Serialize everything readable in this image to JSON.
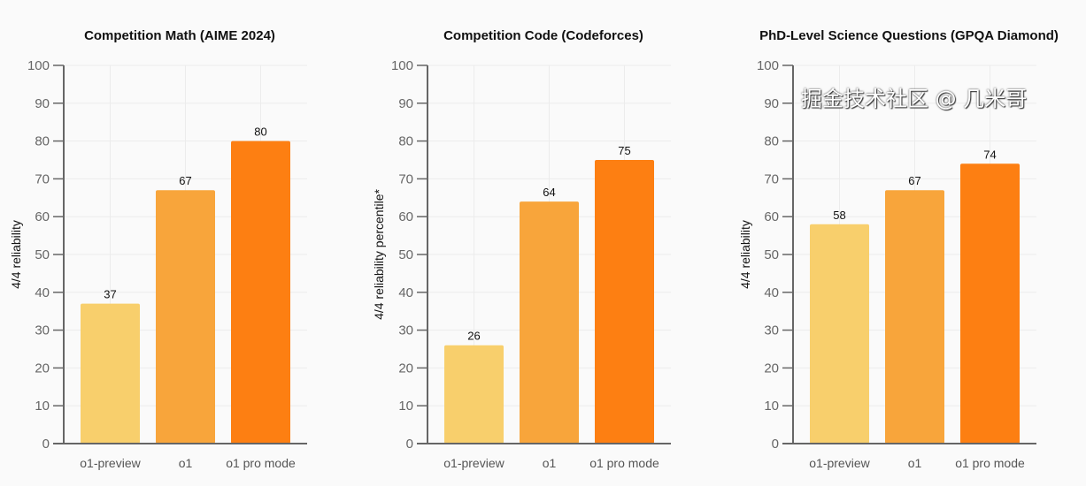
{
  "colors": [
    "#f8cf6c",
    "#f8a53b",
    "#fd7f12"
  ],
  "chart_data": [
    {
      "type": "bar",
      "title": "Competition Math (AIME 2024)",
      "xlabel": "",
      "ylabel": "4/4 reliability",
      "categories": [
        "o1-preview",
        "o1",
        "o1 pro mode"
      ],
      "values": [
        37,
        67,
        80
      ],
      "ylim": [
        0,
        100
      ],
      "yticks": [
        0,
        10,
        20,
        30,
        40,
        50,
        60,
        70,
        80,
        90,
        100
      ],
      "grid": true
    },
    {
      "type": "bar",
      "title": "Competition Code (Codeforces)",
      "xlabel": "",
      "ylabel": "4/4 reliability percentile*",
      "categories": [
        "o1-preview",
        "o1",
        "o1 pro mode"
      ],
      "values": [
        26,
        64,
        75
      ],
      "ylim": [
        0,
        100
      ],
      "yticks": [
        0,
        10,
        20,
        30,
        40,
        50,
        60,
        70,
        80,
        90,
        100
      ],
      "grid": true
    },
    {
      "type": "bar",
      "title": "PhD-Level Science Questions (GPQA Diamond)",
      "xlabel": "",
      "ylabel": "4/4 reliability",
      "categories": [
        "o1-preview",
        "o1",
        "o1 pro mode"
      ],
      "values": [
        58,
        67,
        74
      ],
      "ylim": [
        0,
        100
      ],
      "yticks": [
        0,
        10,
        20,
        30,
        40,
        50,
        60,
        70,
        80,
        90,
        100
      ],
      "grid": true
    }
  ],
  "watermark": "掘金技术社区 @ 几米哥"
}
